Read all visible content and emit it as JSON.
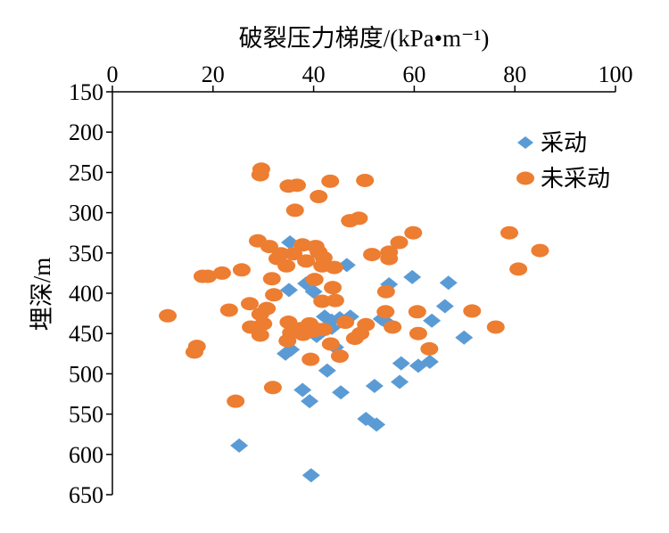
{
  "chart_data": {
    "type": "scatter",
    "xlabel": "破裂压力梯度/(kPa•m⁻¹)",
    "ylabel": "埋深/m",
    "xlim": [
      0,
      100
    ],
    "ylim": [
      150,
      650
    ],
    "x_axis_position": "top",
    "y_axis_reversed": true,
    "xticks": [
      0,
      20,
      40,
      60,
      80,
      100
    ],
    "yticks": [
      150,
      200,
      250,
      300,
      350,
      400,
      450,
      500,
      550,
      600,
      650
    ],
    "grid": false,
    "legend": "top-right",
    "series": [
      {
        "name": "采动",
        "marker": "diamond",
        "color": "#5b9bd5",
        "points": [
          [
            35.3,
            337
          ],
          [
            46.6,
            365
          ],
          [
            35.1,
            396
          ],
          [
            38.5,
            388
          ],
          [
            40.0,
            398
          ],
          [
            55.0,
            389
          ],
          [
            59.6,
            380
          ],
          [
            66.8,
            387
          ],
          [
            66.1,
            416
          ],
          [
            63.5,
            434
          ],
          [
            69.9,
            455
          ],
          [
            53.5,
            432
          ],
          [
            55.1,
            439
          ],
          [
            42.2,
            429
          ],
          [
            43.6,
            434
          ],
          [
            47.3,
            429
          ],
          [
            45.2,
            431
          ],
          [
            43.6,
            443
          ],
          [
            40.6,
            453
          ],
          [
            44.3,
            467
          ],
          [
            34.4,
            475
          ],
          [
            35.5,
            470
          ],
          [
            42.7,
            496
          ],
          [
            57.4,
            487
          ],
          [
            60.8,
            490
          ],
          [
            63.1,
            485
          ],
          [
            57.1,
            510
          ],
          [
            52.1,
            515
          ],
          [
            45.4,
            523
          ],
          [
            37.8,
            520
          ],
          [
            39.2,
            534
          ],
          [
            50.4,
            556
          ],
          [
            52.5,
            563
          ],
          [
            25.2,
            589
          ],
          [
            39.5,
            626
          ]
        ]
      },
      {
        "name": "未采动",
        "marker": "ellipse",
        "color": "#ed7d31",
        "points": [
          [
            29.6,
            246
          ],
          [
            29.4,
            253
          ],
          [
            35.0,
            267
          ],
          [
            36.7,
            266
          ],
          [
            43.3,
            261
          ],
          [
            50.2,
            260
          ],
          [
            41.0,
            280
          ],
          [
            36.3,
            297
          ],
          [
            47.2,
            310
          ],
          [
            49.0,
            307
          ],
          [
            59.8,
            325
          ],
          [
            78.9,
            325
          ],
          [
            28.9,
            335
          ],
          [
            31.2,
            342
          ],
          [
            37.8,
            340
          ],
          [
            40.4,
            342
          ],
          [
            41.0,
            349
          ],
          [
            33.5,
            351
          ],
          [
            32.8,
            357
          ],
          [
            36.0,
            351
          ],
          [
            34.6,
            366
          ],
          [
            38.5,
            360
          ],
          [
            42.0,
            356
          ],
          [
            44.1,
            368
          ],
          [
            41.7,
            366
          ],
          [
            51.6,
            352
          ],
          [
            55.0,
            349
          ],
          [
            55.0,
            357
          ],
          [
            57.0,
            337
          ],
          [
            85.0,
            347
          ],
          [
            80.7,
            370
          ],
          [
            25.7,
            371
          ],
          [
            21.8,
            375
          ],
          [
            19.0,
            379
          ],
          [
            17.9,
            379
          ],
          [
            31.7,
            382
          ],
          [
            40.2,
            383
          ],
          [
            43.8,
            393
          ],
          [
            54.4,
            398
          ],
          [
            32.1,
            402
          ],
          [
            41.7,
            410
          ],
          [
            44.3,
            409
          ],
          [
            27.3,
            413
          ],
          [
            30.7,
            419
          ],
          [
            23.2,
            421
          ],
          [
            11.0,
            428
          ],
          [
            29.4,
            426
          ],
          [
            54.3,
            423
          ],
          [
            60.6,
            423
          ],
          [
            71.5,
            422
          ],
          [
            30.0,
            438
          ],
          [
            27.5,
            442
          ],
          [
            35.0,
            436
          ],
          [
            39.2,
            438
          ],
          [
            46.3,
            436
          ],
          [
            50.4,
            439
          ],
          [
            55.7,
            442
          ],
          [
            76.2,
            442
          ],
          [
            37.4,
            444
          ],
          [
            35.5,
            449
          ],
          [
            37.9,
            451
          ],
          [
            40.8,
            445
          ],
          [
            42.0,
            445
          ],
          [
            39.9,
            447
          ],
          [
            29.4,
            452
          ],
          [
            34.8,
            459
          ],
          [
            49.3,
            450
          ],
          [
            48.2,
            456
          ],
          [
            60.8,
            450
          ],
          [
            43.4,
            463
          ],
          [
            63.0,
            469
          ],
          [
            16.8,
            466
          ],
          [
            16.3,
            473
          ],
          [
            45.2,
            478
          ],
          [
            39.4,
            482
          ],
          [
            31.9,
            517
          ],
          [
            24.5,
            534
          ]
        ]
      }
    ]
  }
}
